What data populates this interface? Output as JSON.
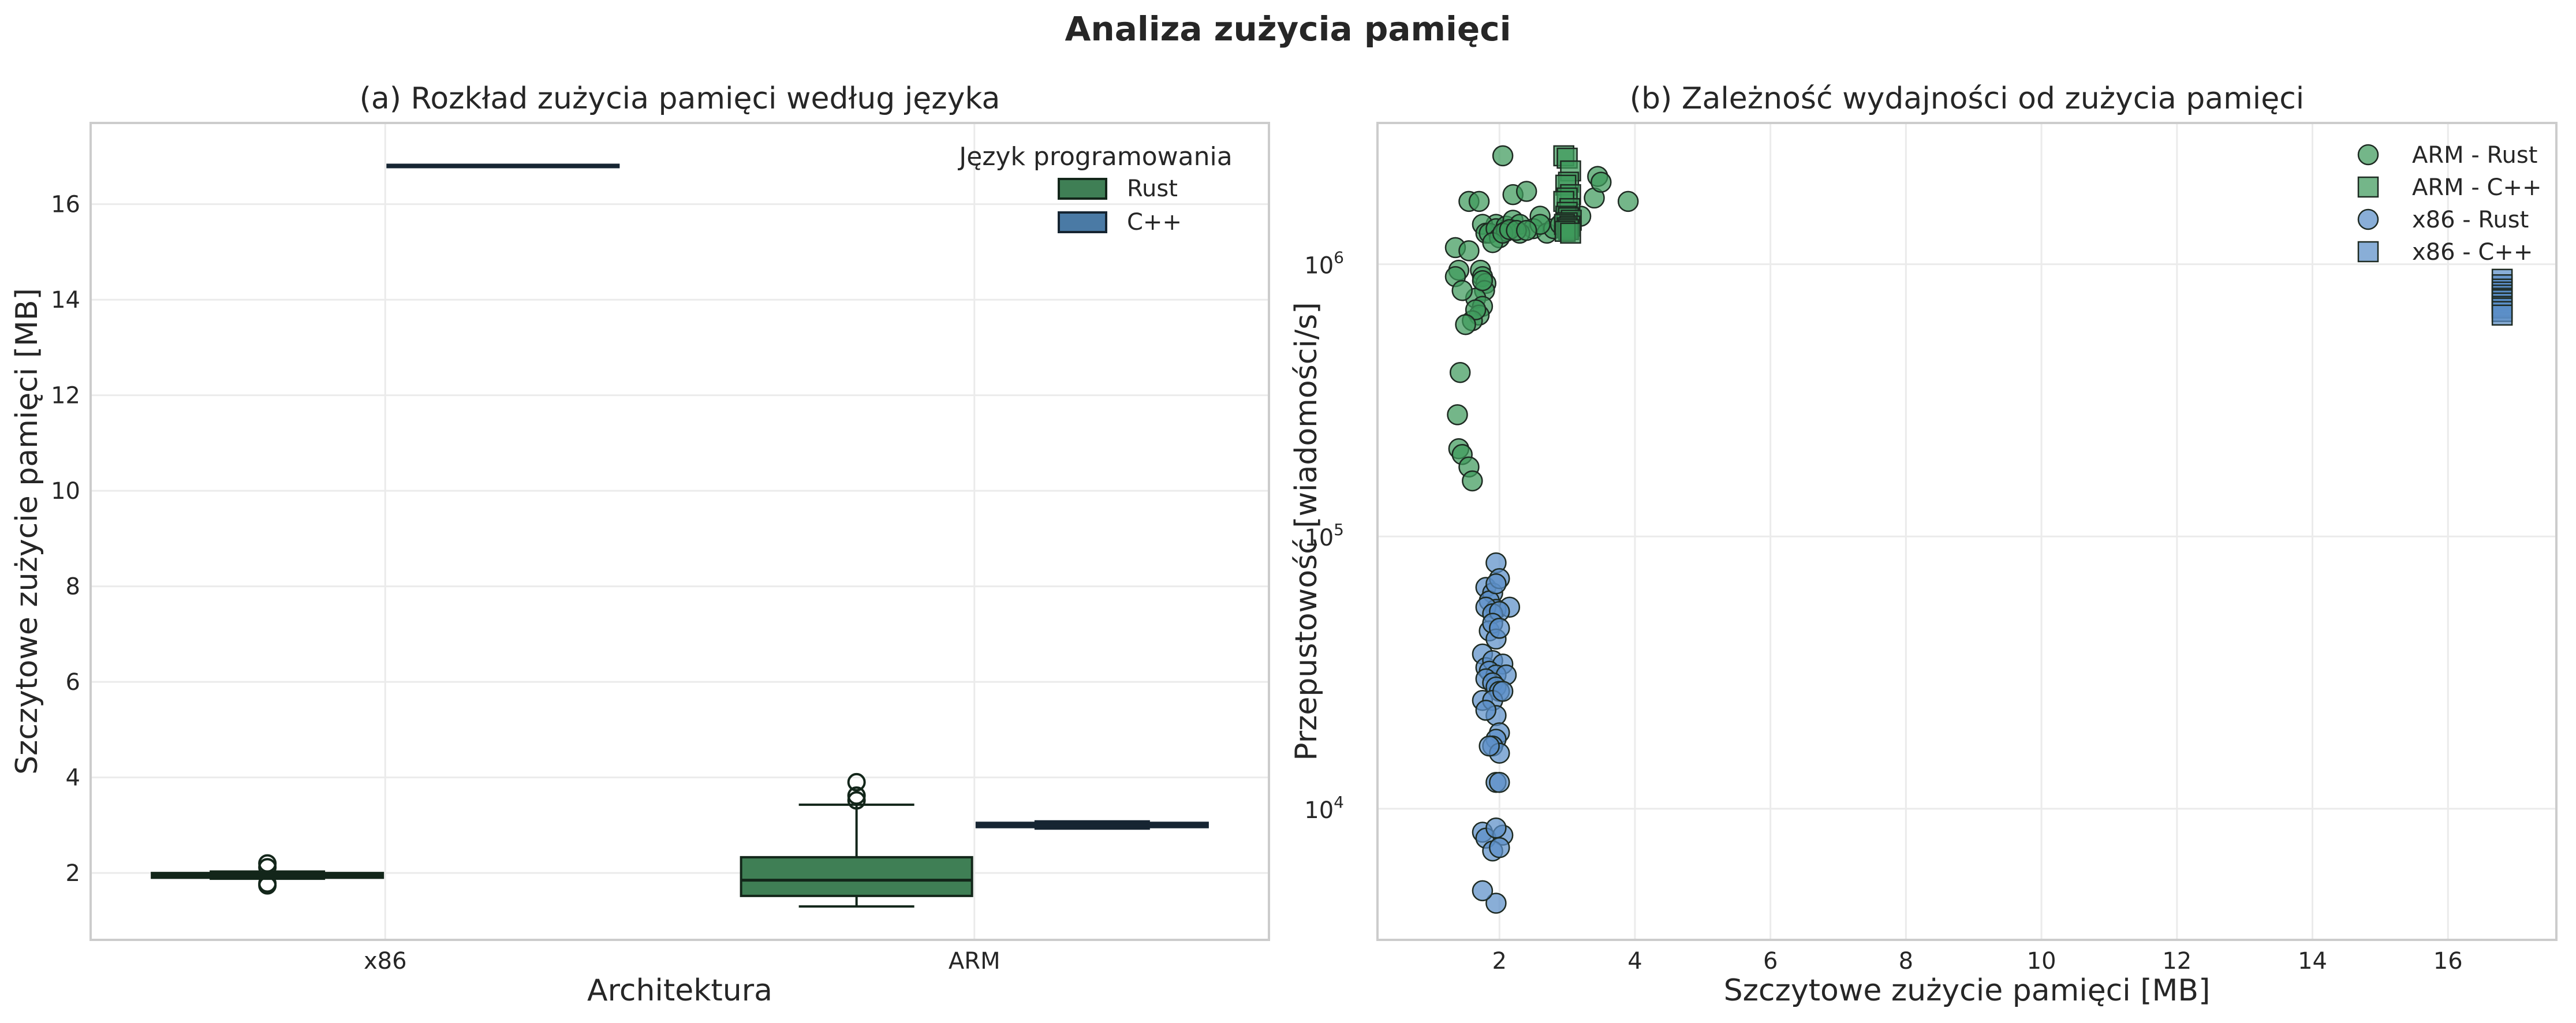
{
  "figure": {
    "title": "Analiza zużycia pamięci"
  },
  "chart_data": [
    {
      "type": "box",
      "title": "(a) Rozkład zużycia pamięci według języka",
      "xlabel": "Architektura",
      "ylabel": "Szczytowe zużycie pamięci [MB]",
      "categories": [
        "x86",
        "ARM"
      ],
      "ylim": [
        0.6,
        17.7
      ],
      "yticks": [
        2,
        4,
        6,
        8,
        10,
        12,
        14,
        16
      ],
      "grid": true,
      "legend": {
        "title": "Język programowania",
        "placement": "top-right"
      },
      "series": [
        {
          "name": "Rust",
          "color": "#3f7f55",
          "boxes": [
            {
              "category": "x86",
              "whislo": 1.88,
              "q1": 1.9,
              "median": 1.95,
              "q3": 2.0,
              "whishi": 2.03,
              "fliers": [
                2.2,
                2.12,
                1.78,
                1.74
              ]
            },
            {
              "category": "ARM",
              "whislo": 1.3,
              "q1": 1.52,
              "median": 1.85,
              "q3": 2.33,
              "whishi": 3.43,
              "fliers": [
                3.62,
                3.52,
                3.9
              ]
            }
          ]
        },
        {
          "name": "C++",
          "color": "#4a7aa5",
          "boxes": [
            {
              "category": "x86",
              "whislo": 16.8,
              "q1": 16.8,
              "median": 16.8,
              "q3": 16.8,
              "whishi": 16.8,
              "fliers": []
            },
            {
              "category": "ARM",
              "whislo": 2.93,
              "q1": 2.96,
              "median": 3.0,
              "q3": 3.05,
              "whishi": 3.08,
              "fliers": []
            }
          ]
        }
      ]
    },
    {
      "type": "scatter",
      "title": "(b) Zależność wydajności od zużycia pamięci",
      "xlabel": "Szczytowe zużycie pamięci [MB]",
      "ylabel": "Przepustowość [wiadomości/s]",
      "yscale": "log",
      "xlim": [
        0.2,
        17.6
      ],
      "ylim": [
        3300,
        3300000
      ],
      "xticks": [
        2,
        4,
        6,
        8,
        10,
        12,
        14,
        16
      ],
      "yticks": [
        {
          "value": 10000,
          "base": "10",
          "exp": "4"
        },
        {
          "value": 100000,
          "base": "10",
          "exp": "5"
        },
        {
          "value": 1000000,
          "base": "10",
          "exp": "6"
        }
      ],
      "grid": true,
      "legend": {
        "placement": "top-right"
      },
      "series": [
        {
          "name": "ARM - Rust",
          "marker": "circle",
          "color": "#3f9a5c",
          "x": [
            2.05,
            1.35,
            1.95,
            2.2,
            2.4,
            2.6,
            1.55,
            1.7,
            1.75,
            1.8,
            1.72,
            1.75,
            1.8,
            1.78,
            1.65,
            1.75,
            1.4,
            1.35,
            1.45,
            1.7,
            1.6,
            1.65,
            1.42,
            1.38,
            1.4,
            1.45,
            1.55,
            1.6,
            1.85,
            1.95,
            2.0,
            2.1,
            2.2,
            2.3,
            2.5,
            2.7,
            2.8,
            2.9,
            3.2,
            3.4,
            3.45,
            3.5,
            3.9,
            2.3,
            2.6,
            1.55,
            1.5,
            2.1,
            1.9,
            2.05,
            1.75,
            2.15,
            2.25,
            2.4
          ],
          "y": [
            2500000,
            1150000,
            1400000,
            1800000,
            1850000,
            1500000,
            1700000,
            1700000,
            1400000,
            1300000,
            950000,
            900000,
            850000,
            800000,
            750000,
            700000,
            950000,
            900000,
            800000,
            650000,
            620000,
            680000,
            400000,
            280000,
            210000,
            200000,
            180000,
            160000,
            1300000,
            1350000,
            1250000,
            1380000,
            1450000,
            1400000,
            1350000,
            1300000,
            1350000,
            1400000,
            1500000,
            1750000,
            2100000,
            2000000,
            1700000,
            1300000,
            1400000,
            1120000,
            600000,
            1320000,
            1200000,
            1300000,
            870000,
            1340000,
            1330000,
            1330000
          ]
        },
        {
          "name": "ARM - C++",
          "marker": "square",
          "color": "#3f9a5c",
          "x": [
            2.95,
            3.0,
            3.05,
            3.02,
            2.98,
            3.05,
            3.0,
            2.95,
            3.04,
            3.0,
            2.98,
            3.02,
            3.06,
            3.0,
            2.96,
            3.04,
            3.0,
            3.02,
            2.97,
            3.05
          ],
          "y": [
            2500000,
            2450000,
            2200000,
            2000000,
            1950000,
            1800000,
            1750000,
            1700000,
            1600000,
            1550000,
            1500000,
            1480000,
            1450000,
            1420000,
            1400000,
            1380000,
            1360000,
            1340000,
            1320000,
            1300000
          ]
        },
        {
          "name": "x86 - Rust",
          "marker": "circle",
          "color": "#5b8fc7",
          "x": [
            1.95,
            1.8,
            1.9,
            2.0,
            1.85,
            1.95,
            2.15,
            1.8,
            1.9,
            2.0,
            1.85,
            1.9,
            1.95,
            2.0,
            1.75,
            1.8,
            1.9,
            2.05,
            1.85,
            1.95,
            2.1,
            1.8,
            1.9,
            1.95,
            2.0,
            1.75,
            1.9,
            2.05,
            1.95,
            2.0,
            1.8,
            1.95,
            1.9,
            2.0,
            1.85,
            1.95,
            2.0,
            1.75,
            1.8,
            2.05,
            1.95,
            1.9,
            2.0,
            1.95,
            1.75,
            1.95
          ],
          "y": [
            80000,
            65000,
            62000,
            70000,
            58000,
            54000,
            55000,
            55000,
            52000,
            53000,
            45000,
            48000,
            42000,
            46000,
            37000,
            33000,
            35000,
            34000,
            32000,
            31000,
            31000,
            30000,
            29000,
            28000,
            27000,
            25000,
            25000,
            27000,
            22000,
            19000,
            23000,
            18000,
            17000,
            16000,
            17000,
            12500,
            12500,
            8200,
            7800,
            8000,
            8500,
            7000,
            7200,
            4500,
            5000,
            67000
          ]
        },
        {
          "name": "x86 - C++",
          "marker": "square",
          "color": "#5b8fc7",
          "x": [
            16.8,
            16.8,
            16.8,
            16.8,
            16.8,
            16.8,
            16.8,
            16.8,
            16.8,
            16.8,
            16.8,
            16.8
          ],
          "y": [
            880000,
            840000,
            810000,
            790000,
            770000,
            750000,
            740000,
            720000,
            700000,
            690000,
            670000,
            650000
          ]
        }
      ]
    }
  ]
}
